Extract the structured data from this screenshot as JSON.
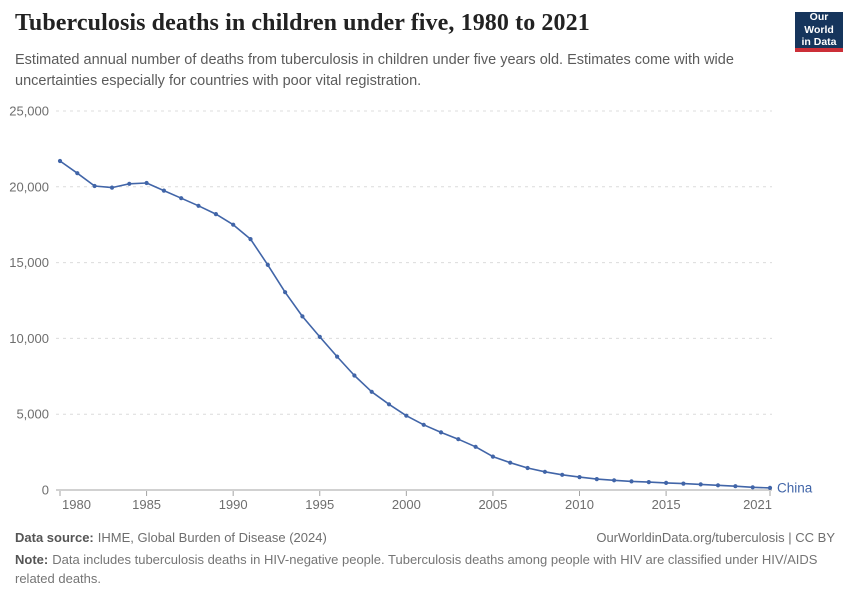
{
  "header": {
    "title": "Tuberculosis deaths in children under five, 1980 to 2021",
    "subtitle": "Estimated annual number of deaths from tuberculosis in children under five years old. Estimates come with wide uncertainties especially for countries with poor vital registration.",
    "logo": {
      "line1": "Our World",
      "line2": "in Data",
      "bg_color": "#16355c",
      "accent_color": "#cc2f38"
    }
  },
  "chart_data": {
    "type": "line",
    "title": "Tuberculosis deaths in children under five, 1980 to 2021",
    "xlabel": "",
    "ylabel": "",
    "xlim": [
      1980,
      2021
    ],
    "ylim": [
      0,
      25000
    ],
    "grid": "horizontal-dashed",
    "legend_position": "end-of-line-label",
    "marker": "dot",
    "x": [
      1980,
      1981,
      1982,
      1983,
      1984,
      1985,
      1986,
      1987,
      1988,
      1989,
      1990,
      1991,
      1992,
      1993,
      1994,
      1995,
      1996,
      1997,
      1998,
      1999,
      2000,
      2001,
      2002,
      2003,
      2004,
      2005,
      2006,
      2007,
      2008,
      2009,
      2010,
      2011,
      2012,
      2013,
      2014,
      2015,
      2016,
      2017,
      2018,
      2019,
      2020,
      2021
    ],
    "series": [
      {
        "name": "China",
        "color": "#4165a8",
        "values": [
          21700,
          20900,
          20050,
          19950,
          20200,
          20250,
          19750,
          19250,
          18750,
          18200,
          17500,
          16550,
          14850,
          13050,
          11450,
          10100,
          8800,
          7550,
          6480,
          5650,
          4900,
          4300,
          3800,
          3350,
          2850,
          2200,
          1800,
          1450,
          1200,
          1000,
          850,
          720,
          640,
          570,
          520,
          470,
          420,
          370,
          310,
          250,
          180,
          140
        ]
      }
    ],
    "yticks": [
      {
        "value": 0,
        "label": "0"
      },
      {
        "value": 5000,
        "label": "5,000"
      },
      {
        "value": 10000,
        "label": "10,000"
      },
      {
        "value": 15000,
        "label": "15,000"
      },
      {
        "value": 20000,
        "label": "20,000"
      },
      {
        "value": 25000,
        "label": "25,000"
      }
    ],
    "xticks": [
      {
        "value": 1980,
        "label": "1980"
      },
      {
        "value": 1985,
        "label": "1985"
      },
      {
        "value": 1990,
        "label": "1990"
      },
      {
        "value": 1995,
        "label": "1995"
      },
      {
        "value": 2000,
        "label": "2000"
      },
      {
        "value": 2005,
        "label": "2005"
      },
      {
        "value": 2010,
        "label": "2010"
      },
      {
        "value": 2015,
        "label": "2015"
      },
      {
        "value": 2021,
        "label": "2021"
      }
    ]
  },
  "colors": {
    "line": "#4165a8",
    "grid": "#dcdcdc",
    "axis": "#a3a3a3",
    "tick_label": "#6e6e6e"
  },
  "footer": {
    "source_label": "Data source:",
    "source_text": "IHME, Global Burden of Disease (2024)",
    "attribution": "OurWorldinData.org/tuberculosis | CC BY",
    "note_label": "Note:",
    "note_text": "Data includes tuberculosis deaths in HIV-negative people. Tuberculosis deaths among people with HIV are classified under HIV/AIDS related deaths."
  }
}
